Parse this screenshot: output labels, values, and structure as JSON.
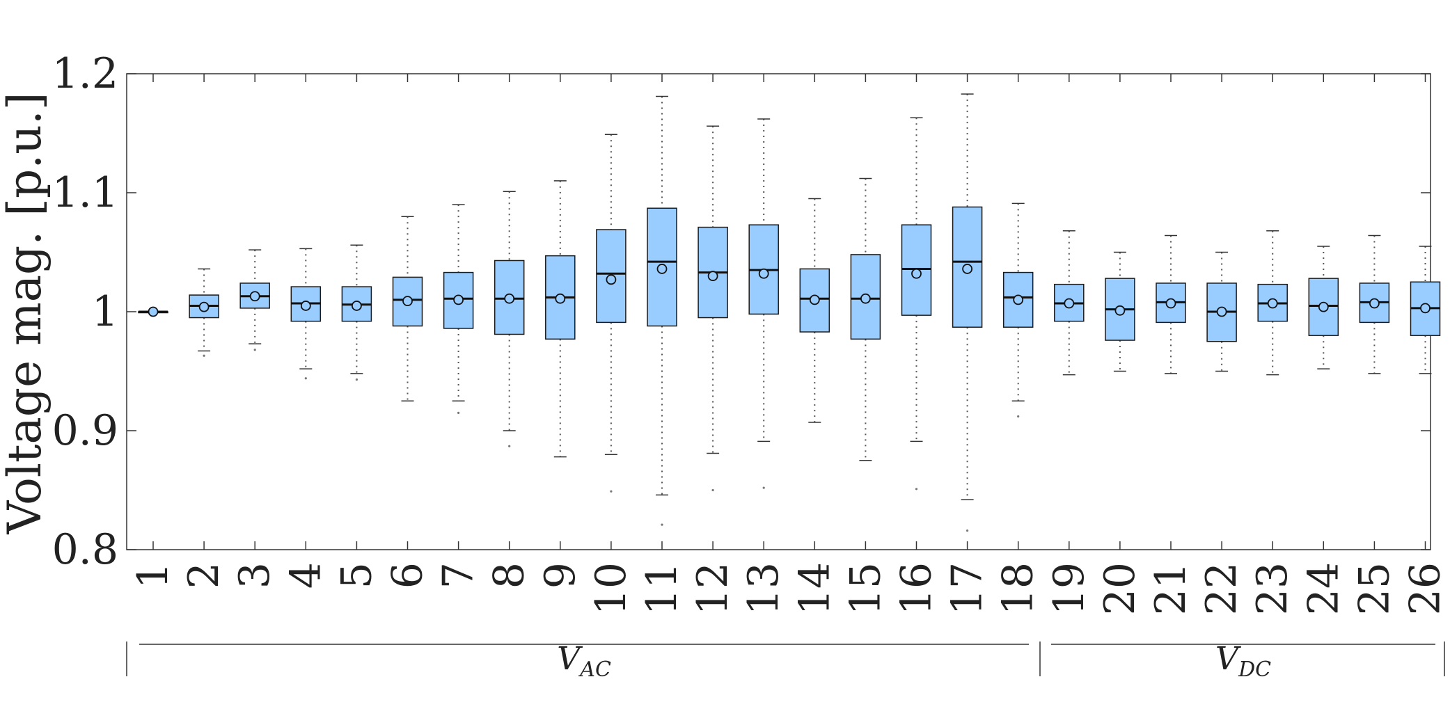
{
  "chart_data": {
    "type": "box",
    "ylabel": "Voltage mag. [p.u.]",
    "ylim": [
      0.8,
      1.2
    ],
    "yticks": [
      "0.8",
      "0.9",
      "1",
      "1.1",
      "1.2"
    ],
    "grid": false,
    "categories": [
      "1",
      "2",
      "3",
      "4",
      "5",
      "6",
      "7",
      "8",
      "9",
      "10",
      "11",
      "12",
      "13",
      "14",
      "15",
      "16",
      "17",
      "18",
      "19",
      "20",
      "21",
      "22",
      "23",
      "24",
      "25",
      "26"
    ],
    "groups": [
      {
        "label": "V",
        "subscript": "AC",
        "from": "1",
        "to": "18"
      },
      {
        "label": "V",
        "subscript": "DC",
        "from": "19",
        "to": "26"
      }
    ],
    "colors": {
      "box_fill": "#99ccff",
      "box_stroke": "#1a1a1a",
      "mean_fill": "#99ccff"
    },
    "boxes": [
      {
        "low": 1.0,
        "q1": 1.0,
        "median": 1.0,
        "q3": 1.0,
        "high": 1.0,
        "mean": 1.0,
        "outliers": []
      },
      {
        "low": 0.967,
        "q1": 0.995,
        "median": 1.005,
        "q3": 1.014,
        "high": 1.036,
        "mean": 1.004,
        "outliers": [
          0.963
        ]
      },
      {
        "low": 0.973,
        "q1": 1.003,
        "median": 1.013,
        "q3": 1.024,
        "high": 1.052,
        "mean": 1.013,
        "outliers": [
          0.968
        ]
      },
      {
        "low": 0.952,
        "q1": 0.992,
        "median": 1.007,
        "q3": 1.021,
        "high": 1.053,
        "mean": 1.005,
        "outliers": [
          0.944
        ]
      },
      {
        "low": 0.948,
        "q1": 0.992,
        "median": 1.006,
        "q3": 1.021,
        "high": 1.056,
        "mean": 1.005,
        "outliers": [
          0.943
        ]
      },
      {
        "low": 0.925,
        "q1": 0.988,
        "median": 1.01,
        "q3": 1.029,
        "high": 1.08,
        "mean": 1.009,
        "outliers": []
      },
      {
        "low": 0.925,
        "q1": 0.986,
        "median": 1.011,
        "q3": 1.033,
        "high": 1.09,
        "mean": 1.01,
        "outliers": [
          0.915
        ]
      },
      {
        "low": 0.9,
        "q1": 0.981,
        "median": 1.011,
        "q3": 1.043,
        "high": 1.101,
        "mean": 1.011,
        "outliers": [
          0.887
        ]
      },
      {
        "low": 0.878,
        "q1": 0.977,
        "median": 1.012,
        "q3": 1.047,
        "high": 1.11,
        "mean": 1.011,
        "outliers": []
      },
      {
        "low": 0.88,
        "q1": 0.991,
        "median": 1.032,
        "q3": 1.069,
        "high": 1.149,
        "mean": 1.027,
        "outliers": [
          0.849
        ]
      },
      {
        "low": 0.846,
        "q1": 0.988,
        "median": 1.042,
        "q3": 1.087,
        "high": 1.181,
        "mean": 1.036,
        "outliers": [
          0.821
        ]
      },
      {
        "low": 0.881,
        "q1": 0.995,
        "median": 1.033,
        "q3": 1.071,
        "high": 1.156,
        "mean": 1.03,
        "outliers": [
          0.85
        ]
      },
      {
        "low": 0.891,
        "q1": 0.998,
        "median": 1.035,
        "q3": 1.073,
        "high": 1.162,
        "mean": 1.032,
        "outliers": [
          0.852
        ]
      },
      {
        "low": 0.907,
        "q1": 0.983,
        "median": 1.011,
        "q3": 1.036,
        "high": 1.095,
        "mean": 1.01,
        "outliers": []
      },
      {
        "low": 0.875,
        "q1": 0.977,
        "median": 1.011,
        "q3": 1.048,
        "high": 1.112,
        "mean": 1.011,
        "outliers": []
      },
      {
        "low": 0.891,
        "q1": 0.997,
        "median": 1.036,
        "q3": 1.073,
        "high": 1.163,
        "mean": 1.032,
        "outliers": [
          0.851
        ]
      },
      {
        "low": 0.842,
        "q1": 0.987,
        "median": 1.042,
        "q3": 1.088,
        "high": 1.183,
        "mean": 1.036,
        "outliers": [
          0.816
        ]
      },
      {
        "low": 0.925,
        "q1": 0.987,
        "median": 1.012,
        "q3": 1.033,
        "high": 1.091,
        "mean": 1.01,
        "outliers": [
          0.912
        ]
      },
      {
        "low": 0.947,
        "q1": 0.992,
        "median": 1.007,
        "q3": 1.023,
        "high": 1.068,
        "mean": 1.007,
        "outliers": []
      },
      {
        "low": 0.95,
        "q1": 0.976,
        "median": 1.002,
        "q3": 1.028,
        "high": 1.05,
        "mean": 1.001,
        "outliers": []
      },
      {
        "low": 0.948,
        "q1": 0.991,
        "median": 1.008,
        "q3": 1.024,
        "high": 1.064,
        "mean": 1.007,
        "outliers": []
      },
      {
        "low": 0.95,
        "q1": 0.975,
        "median": 1.0,
        "q3": 1.024,
        "high": 1.05,
        "mean": 1.0,
        "outliers": []
      },
      {
        "low": 0.947,
        "q1": 0.992,
        "median": 1.007,
        "q3": 1.023,
        "high": 1.068,
        "mean": 1.007,
        "outliers": []
      },
      {
        "low": 0.952,
        "q1": 0.98,
        "median": 1.005,
        "q3": 1.028,
        "high": 1.055,
        "mean": 1.004,
        "outliers": []
      },
      {
        "low": 0.948,
        "q1": 0.991,
        "median": 1.008,
        "q3": 1.024,
        "high": 1.064,
        "mean": 1.007,
        "outliers": []
      },
      {
        "low": 0.948,
        "q1": 0.98,
        "median": 1.003,
        "q3": 1.025,
        "high": 1.055,
        "mean": 1.003,
        "outliers": []
      }
    ]
  }
}
